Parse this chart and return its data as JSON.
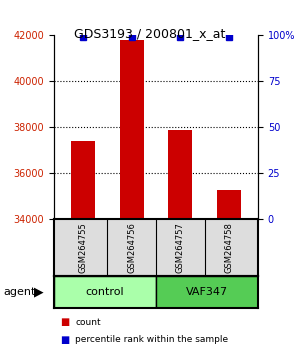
{
  "title": "GDS3193 / 200801_x_at",
  "samples": [
    "GSM264755",
    "GSM264756",
    "GSM264757",
    "GSM264758"
  ],
  "counts": [
    37400,
    41800,
    37900,
    35300
  ],
  "percentile_ranks": [
    99,
    99,
    99,
    99
  ],
  "ylim_left": [
    34000,
    42000
  ],
  "ylim_right": [
    0,
    100
  ],
  "yticks_left": [
    34000,
    36000,
    38000,
    40000,
    42000
  ],
  "yticks_right": [
    0,
    25,
    50,
    75,
    100
  ],
  "grid_ticks": [
    36000,
    38000,
    40000
  ],
  "bar_color": "#cc0000",
  "percentile_color": "#0000cc",
  "left_tick_color": "#cc2200",
  "right_tick_color": "#0000cc",
  "groups": [
    {
      "label": "control",
      "indices": [
        0,
        1
      ],
      "color": "#aaffaa"
    },
    {
      "label": "VAF347",
      "indices": [
        2,
        3
      ],
      "color": "#55cc55"
    }
  ],
  "agent_label": "agent",
  "legend_items": [
    {
      "label": "count",
      "color": "#cc0000"
    },
    {
      "label": "percentile rank within the sample",
      "color": "#0000cc"
    }
  ],
  "bar_width": 0.5
}
